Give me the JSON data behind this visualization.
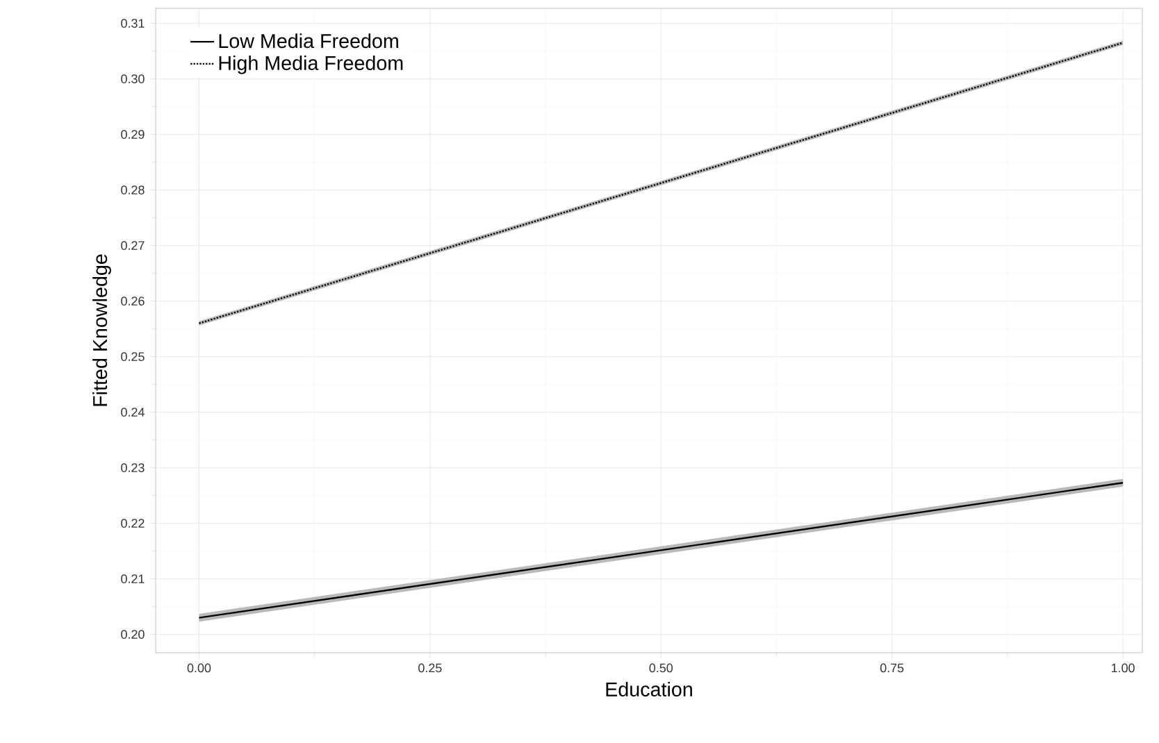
{
  "chart_data": {
    "type": "line",
    "xlabel": "Education",
    "ylabel": "Fitted Knowledge",
    "x": [
      0,
      1
    ],
    "series": [
      {
        "name": "Low Media Freedom",
        "color": "#000000",
        "line_style": "solid",
        "values": [
          0.203,
          0.2273
        ],
        "lower": [
          0.2023,
          0.2266
        ],
        "upper": [
          0.2037,
          0.228
        ]
      },
      {
        "name": "High Media Freedom",
        "color": "#000000",
        "line_style": "dotted",
        "values": [
          0.256,
          0.3065
        ],
        "lower": [
          0.2556,
          0.3061
        ],
        "upper": [
          0.2564,
          0.3069
        ]
      }
    ],
    "xlim": [
      -0.047,
      1.021
    ],
    "ylim": [
      0.1967,
      0.3127
    ],
    "xticks": [
      {
        "value": 0,
        "label": "0.00"
      },
      {
        "value": 0.25,
        "label": "0.25"
      },
      {
        "value": 0.5,
        "label": "0.50"
      },
      {
        "value": 0.75,
        "label": "0.75"
      },
      {
        "value": 1,
        "label": "1.00"
      }
    ],
    "yticks": [
      {
        "value": 0.2,
        "label": "0.20"
      },
      0.21,
      0.22,
      0.23,
      0.24,
      0.25,
      0.26,
      0.27,
      0.28,
      0.29,
      {
        "value": 0.3,
        "label": "0.30"
      },
      0.31
    ],
    "grid": true,
    "legend": "top left",
    "marker": "none"
  }
}
